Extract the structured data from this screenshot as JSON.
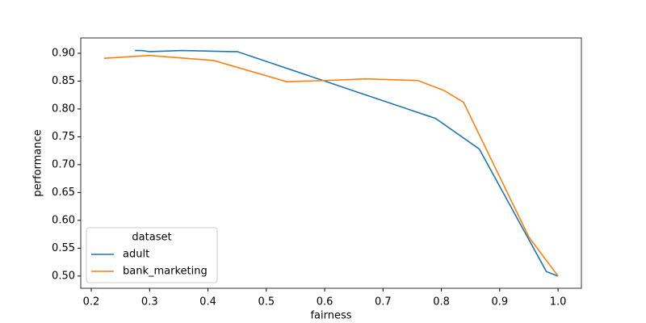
{
  "chart_data": {
    "type": "line",
    "x_label": "fairness",
    "y_label": "performance",
    "legend_title": "dataset",
    "legend_position": "lower left",
    "xlim": [
      0.182,
      1.04
    ],
    "ylim": [
      0.478,
      0.9275
    ],
    "xticks": [
      0.2,
      0.3,
      0.4,
      0.5,
      0.6,
      0.7,
      0.8,
      0.9,
      {
        "value": 1,
        "label": "1.0"
      }
    ],
    "yticks": [
      {
        "value": 0.5,
        "label": "0.50"
      },
      0.55,
      {
        "value": 0.6,
        "label": "0.60"
      },
      0.65,
      {
        "value": 0.7,
        "label": "0.70"
      },
      0.75,
      {
        "value": 0.8,
        "label": "0.80"
      },
      0.85,
      {
        "value": 0.9,
        "label": "0.90"
      }
    ],
    "series": [
      {
        "name": "adult",
        "color": "#1f77b4",
        "x": [
          0.275,
          0.285,
          0.3,
          0.355,
          0.44,
          0.45,
          0.79,
          0.865,
          0.98,
          1.0
        ],
        "values": [
          0.905,
          0.905,
          0.903,
          0.905,
          0.903,
          0.903,
          0.783,
          0.728,
          0.508,
          0.5
        ]
      },
      {
        "name": "bank_marketing",
        "color": "#ff7f0e",
        "x": [
          0.222,
          0.3,
          0.41,
          0.535,
          0.6,
          0.67,
          0.76,
          0.805,
          0.838,
          0.95,
          1.0
        ],
        "values": [
          0.891,
          0.896,
          0.887,
          0.849,
          0.851,
          0.854,
          0.851,
          0.833,
          0.812,
          0.57,
          0.5
        ]
      }
    ]
  }
}
